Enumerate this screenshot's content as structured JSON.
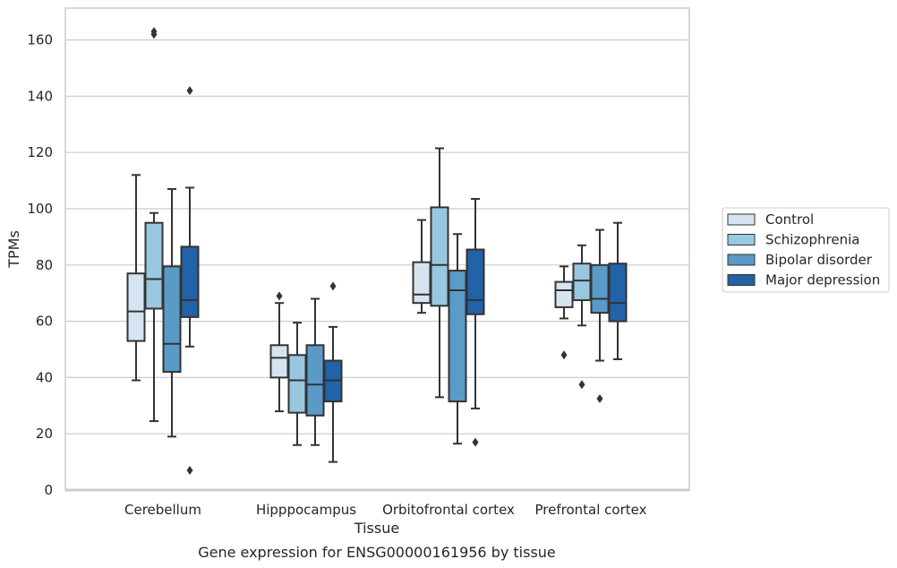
{
  "chart_data": {
    "type": "box",
    "xlabel": "Tissue",
    "ylabel": "TPMs",
    "caption": "Gene expression for ENSG00000161956 by tissue",
    "ylim": [
      0,
      172
    ],
    "yticks": [
      0,
      20,
      40,
      60,
      80,
      100,
      120,
      140,
      160
    ],
    "grid": "horizontal",
    "legend_placement": "right",
    "categories": [
      "Cerebellum",
      "Hipppocampus",
      "Orbitofrontal cortex",
      "Prefrontal cortex"
    ],
    "series": [
      {
        "name": "Control",
        "color": "#d6e4f2",
        "boxes": [
          {
            "whislo": 39,
            "q1": 53,
            "med": 63.5,
            "q3": 77,
            "whishi": 112,
            "fliers": []
          },
          {
            "whislo": 28,
            "q1": 40,
            "med": 47,
            "q3": 51.5,
            "whishi": 66.5,
            "fliers": [
              69
            ]
          },
          {
            "whislo": 63,
            "q1": 66.5,
            "med": 69.5,
            "q3": 81,
            "whishi": 96,
            "fliers": []
          },
          {
            "whislo": 61,
            "q1": 65,
            "med": 71,
            "q3": 74,
            "whishi": 79.5,
            "fliers": [
              48
            ]
          }
        ]
      },
      {
        "name": "Schizophrenia",
        "color": "#9ac7e0",
        "boxes": [
          {
            "whislo": 24.5,
            "q1": 64.5,
            "med": 75,
            "q3": 95,
            "whishi": 98.5,
            "fliers": [
              162,
              163
            ]
          },
          {
            "whislo": 16,
            "q1": 27.5,
            "med": 39,
            "q3": 48,
            "whishi": 59.5,
            "fliers": []
          },
          {
            "whislo": 33,
            "q1": 65.5,
            "med": 80,
            "q3": 100.5,
            "whishi": 121.5,
            "fliers": []
          },
          {
            "whislo": 58.5,
            "q1": 67.5,
            "med": 74.5,
            "q3": 80.5,
            "whishi": 87,
            "fliers": [
              37.5
            ]
          }
        ]
      },
      {
        "name": "Bipolar disorder",
        "color": "#5a9ac7",
        "boxes": [
          {
            "whislo": 19,
            "q1": 42,
            "med": 52,
            "q3": 79.5,
            "whishi": 107,
            "fliers": []
          },
          {
            "whislo": 16,
            "q1": 26.5,
            "med": 37.5,
            "q3": 51.5,
            "whishi": 68,
            "fliers": []
          },
          {
            "whislo": 16.5,
            "q1": 31.5,
            "med": 71,
            "q3": 78,
            "whishi": 91,
            "fliers": []
          },
          {
            "whislo": 46,
            "q1": 63,
            "med": 68,
            "q3": 80,
            "whishi": 92.5,
            "fliers": [
              32.5
            ]
          }
        ]
      },
      {
        "name": "Major depression",
        "color": "#2262a6",
        "boxes": [
          {
            "whislo": 51,
            "q1": 61.5,
            "med": 67.5,
            "q3": 86.5,
            "whishi": 107.5,
            "fliers": [
              142,
              7
            ]
          },
          {
            "whislo": 10,
            "q1": 31.5,
            "med": 39,
            "q3": 46,
            "whishi": 58,
            "fliers": [
              72.5
            ]
          },
          {
            "whislo": 29,
            "q1": 62.5,
            "med": 67.5,
            "q3": 85.5,
            "whishi": 103.5,
            "fliers": [
              17
            ]
          },
          {
            "whislo": 46.5,
            "q1": 60,
            "med": 66.5,
            "q3": 80.5,
            "whishi": 95,
            "fliers": []
          }
        ]
      }
    ]
  }
}
